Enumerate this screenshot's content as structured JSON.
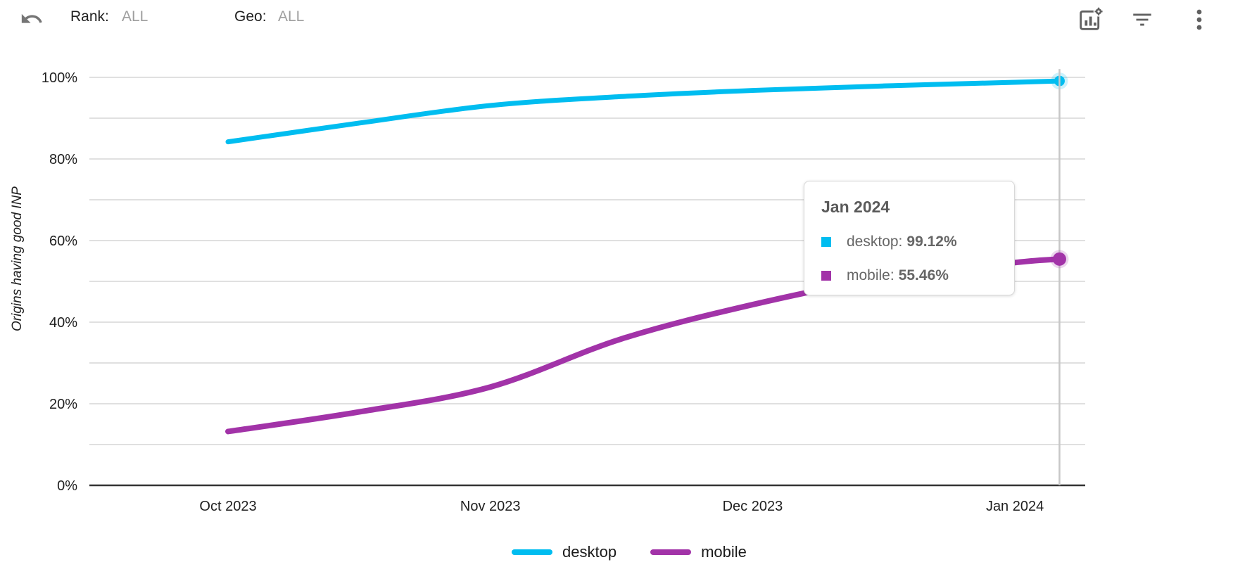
{
  "toolbar": {
    "rank_label": "Rank:",
    "rank_value": "ALL",
    "geo_label": "Geo:",
    "geo_value": "ALL"
  },
  "chart_data": {
    "type": "line",
    "title": "",
    "ylabel": "Origins having good INP",
    "xlabel": "",
    "x_tick_labels": [
      "Oct 2023",
      "Nov 2023",
      "Dec 2023",
      "Jan 2024"
    ],
    "y_tick_labels": [
      "0%",
      "20%",
      "40%",
      "60%",
      "80%",
      "100%"
    ],
    "ylim": [
      0,
      100
    ],
    "y_gridline_step_pct": 10,
    "grid": "horizontal",
    "legend_position": "bottom",
    "highlight": {
      "x_label": "Jan 2024",
      "crosshair": true
    },
    "series": [
      {
        "name": "desktop",
        "color": "#00BDF0",
        "months_after_oct_2023": [
          0,
          0.5,
          1,
          1.5,
          2,
          2.5,
          3,
          3.17
        ],
        "values_pct": [
          84.2,
          88.8,
          93.1,
          95.3,
          96.8,
          97.9,
          98.8,
          99.12
        ],
        "final_value_label": "99.12%"
      },
      {
        "name": "mobile",
        "color": "#A233A8",
        "months_after_oct_2023": [
          0,
          0.5,
          1,
          1.5,
          2,
          2.5,
          3,
          3.17
        ],
        "values_pct": [
          13.2,
          18.0,
          24.1,
          35.9,
          44.3,
          50.8,
          54.6,
          55.46
        ],
        "final_value_label": "55.46%"
      }
    ]
  },
  "tooltip": {
    "title": "Jan 2024",
    "rows": [
      {
        "label": "desktop:",
        "value": "99.12%",
        "color": "#00BDF0"
      },
      {
        "label": "mobile:",
        "value": "55.46%",
        "color": "#A233A8"
      }
    ]
  },
  "legend": {
    "items": [
      {
        "label": "desktop",
        "color": "#00BDF0"
      },
      {
        "label": "mobile",
        "color": "#A233A8"
      }
    ]
  }
}
